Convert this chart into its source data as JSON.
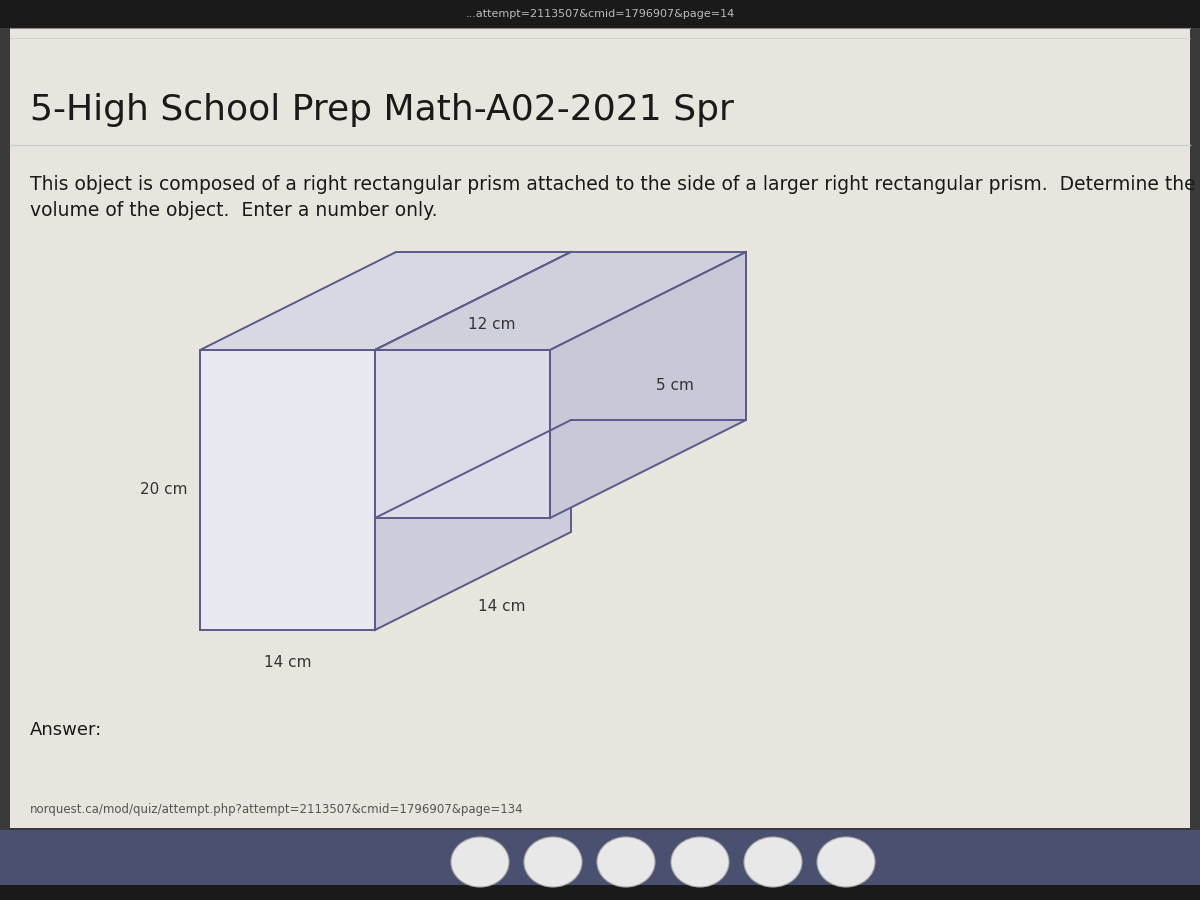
{
  "title": "5-High School Prep Math-A02-2021 Spr",
  "title_fontsize": 26,
  "question_line1": "This object is composed of a right rectangular prism attached to the side of a larger right rectangular prism.  Determine the",
  "question_line2": "volume of the object.  Enter a number only.",
  "question_fontsize": 13.5,
  "answer_label": "Answer:",
  "url_text": "norquest.ca/mod/quiz/attempt.php?attempt=2113507&cmid=1796907&page=134",
  "top_url": "...attempt=2113507&cmid=1796907&page=14",
  "dim_20": "20 cm",
  "dim_14_bottom": "14 cm",
  "dim_14_side": "14 cm",
  "dim_12": "12 cm",
  "dim_5": "5 cm",
  "outer_bg": "#3a3a3a",
  "top_bar_color": "#1a1a1a",
  "page_bg": "#e8e5de",
  "content_bg": "#f2f0ec",
  "taskbar_color": "#4a5070",
  "edge_color": "#5a5a8a",
  "face_front_large": "#e8e8f0",
  "face_top_large": "#d8d8e4",
  "face_right_large": "#ccccdc",
  "face_front_small": "#dcdce8",
  "face_top_small": "#d0d0dc",
  "face_right_small": "#c8c8d8"
}
